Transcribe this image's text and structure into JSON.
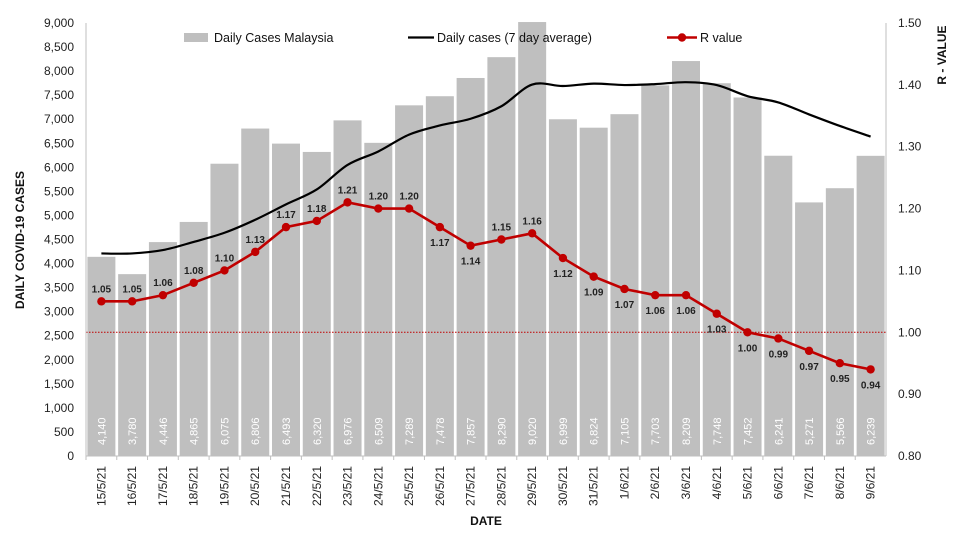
{
  "chart_data": {
    "type": "bar",
    "xlabel": "DATE",
    "ylabel": "DAILY COVID-19 CASES",
    "y2label": "R - VALUE",
    "ylim": [
      0,
      9000
    ],
    "y2lim": [
      0.8,
      1.5
    ],
    "yticks": [
      "0",
      "500",
      "1,000",
      "1,500",
      "2,000",
      "2,500",
      "3,000",
      "3,500",
      "4,000",
      "4,500",
      "5,000",
      "5,500",
      "6,000",
      "6,500",
      "7,000",
      "7,500",
      "8,000",
      "8,500",
      "9,000"
    ],
    "y2ticks": [
      "0.80",
      "0.90",
      "1.00",
      "1.10",
      "1.20",
      "1.30",
      "1.40",
      "1.50"
    ],
    "categories": [
      "15/5/21",
      "16/5/21",
      "17/5/21",
      "18/5/21",
      "19/5/21",
      "20/5/21",
      "21/5/21",
      "22/5/21",
      "23/5/21",
      "24/5/21",
      "25/5/21",
      "26/5/21",
      "27/5/21",
      "28/5/21",
      "29/5/21",
      "30/5/21",
      "31/5/21",
      "1/6/21",
      "2/6/21",
      "3/6/21",
      "4/6/21",
      "5/6/21",
      "6/6/21",
      "7/6/21",
      "8/6/21",
      "9/6/21"
    ],
    "series": [
      {
        "name": "Daily Cases Malaysia",
        "type": "bar",
        "axis": "left",
        "values": [
          4140,
          3780,
          4446,
          4865,
          6075,
          6806,
          6493,
          6320,
          6976,
          6509,
          7289,
          7478,
          7857,
          8290,
          9020,
          6999,
          6824,
          7105,
          7703,
          8209,
          7748,
          7452,
          6241,
          5271,
          5566,
          6239
        ],
        "labels": [
          "4,140",
          "3,780",
          "4,446",
          "4,865",
          "6,075",
          "6,806",
          "6,493",
          "6,320",
          "6,976",
          "6,509",
          "7,289",
          "7,478",
          "7,857",
          "8,290",
          "9,020",
          "6,999",
          "6,824",
          "7,105",
          "7,703",
          "8,209",
          "7,748",
          "7,452",
          "6,241",
          "5,271",
          "5,566",
          "6,239"
        ]
      },
      {
        "name": "Daily cases (7 day average)",
        "type": "line",
        "axis": "left",
        "values": [
          4210,
          4210,
          4280,
          4450,
          4640,
          4910,
          5230,
          5540,
          6050,
          6330,
          6680,
          6870,
          7010,
          7270,
          7720,
          7690,
          7740,
          7710,
          7730,
          7770,
          7710,
          7480,
          7350,
          7100,
          6860,
          6640
        ]
      },
      {
        "name": "R value",
        "type": "line",
        "axis": "right",
        "values": [
          1.05,
          1.05,
          1.06,
          1.08,
          1.1,
          1.13,
          1.17,
          1.18,
          1.21,
          1.2,
          1.2,
          1.17,
          1.14,
          1.15,
          1.16,
          1.12,
          1.09,
          1.07,
          1.06,
          1.06,
          1.03,
          1.0,
          0.99,
          0.97,
          0.95,
          0.94
        ],
        "labels": [
          "1.05",
          "1.05",
          "1.06",
          "1.08",
          "1.10",
          "1.13",
          "1.17",
          "1.18",
          "1.21",
          "1.20",
          "1.20",
          "1.17",
          "1.14",
          "1.15",
          "1.16",
          "1.12",
          "1.09",
          "1.07",
          "1.06",
          "1.06",
          "1.03",
          "1.00",
          "0.99",
          "0.97",
          "0.95",
          "0.94"
        ]
      }
    ],
    "reference_line": {
      "axis": "right",
      "value": 1.0,
      "style": "dotted"
    },
    "legend_position": "top",
    "grid": false,
    "colors": {
      "bars": "#bfbfbf",
      "average_line": "#000000",
      "r_line": "#c00000",
      "reference_line": "#c00000"
    }
  }
}
